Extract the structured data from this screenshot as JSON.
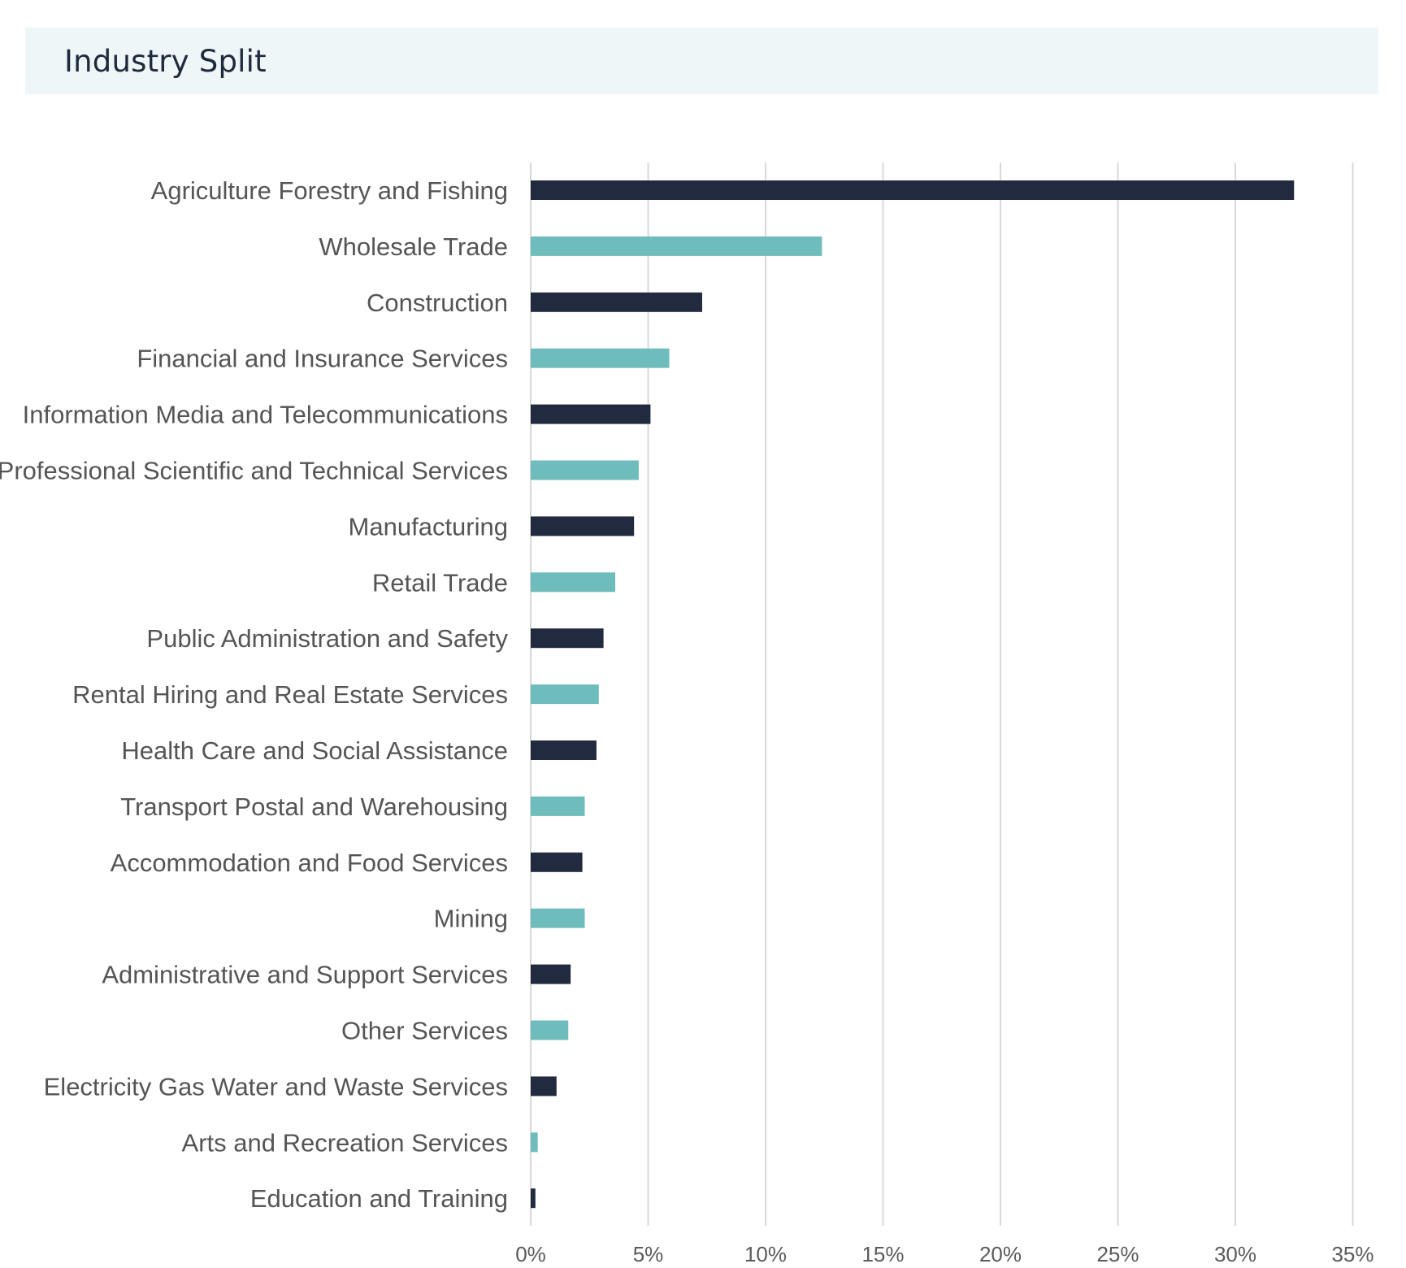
{
  "header": {
    "title": "Industry Split"
  },
  "colors": {
    "dark": "#212a3f",
    "teal": "#6fbcbc",
    "grid": "#d9d9d9",
    "header_bg": "#eef6f8"
  },
  "chart_data": {
    "type": "bar",
    "orientation": "horizontal",
    "title": "Industry Split",
    "xlabel": "",
    "ylabel": "",
    "xlim": [
      0,
      35
    ],
    "x_ticks": [
      "0%",
      "5%",
      "10%",
      "15%",
      "20%",
      "25%",
      "30%",
      "35%"
    ],
    "grid": "vertical",
    "categories": [
      "Agriculture Forestry and Fishing",
      "Wholesale Trade",
      "Construction",
      "Financial and Insurance Services",
      "Information Media and Telecommunications",
      "Professional Scientific and Technical Services",
      "Manufacturing",
      "Retail Trade",
      "Public Administration and Safety",
      "Rental Hiring and Real Estate Services",
      "Health Care and Social Assistance",
      "Transport Postal and Warehousing",
      "Accommodation and Food Services",
      "Mining",
      "Administrative and Support Services",
      "Other Services",
      "Electricity Gas Water and Waste Services",
      "Arts and Recreation Services",
      "Education and Training"
    ],
    "values": [
      32.5,
      12.4,
      7.3,
      5.9,
      5.1,
      4.6,
      4.4,
      3.6,
      3.1,
      2.9,
      2.8,
      2.3,
      2.2,
      2.3,
      1.7,
      1.6,
      1.1,
      0.3,
      0.2
    ],
    "bar_colors": [
      "dark",
      "teal",
      "dark",
      "teal",
      "dark",
      "teal",
      "dark",
      "teal",
      "dark",
      "teal",
      "dark",
      "teal",
      "dark",
      "teal",
      "dark",
      "teal",
      "dark",
      "teal",
      "dark"
    ]
  }
}
